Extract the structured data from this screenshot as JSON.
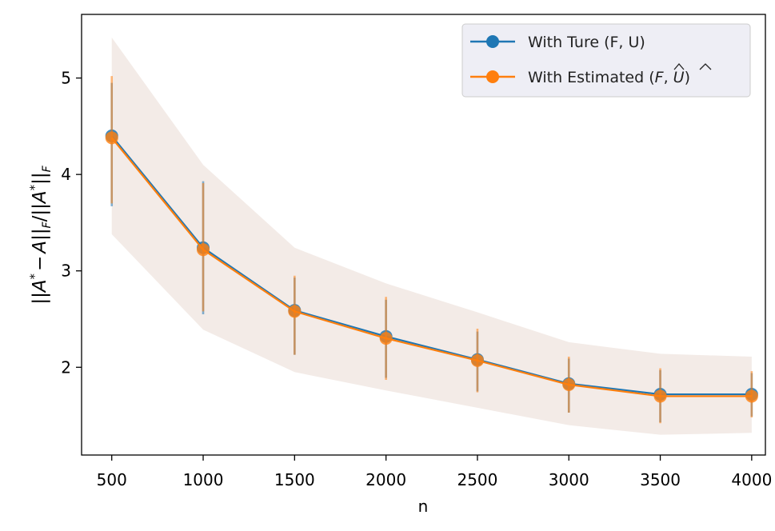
{
  "chart_data": {
    "type": "line",
    "xlabel": "n",
    "ylabel": "||A* − Â||F / ||A*||F",
    "ylabel_parts": {
      "open": "||",
      "a_star": "A",
      "star": "*",
      "minus": "−",
      "a_hat": "A",
      "hat_mark": "^",
      "close_f": "||",
      "sub_f": "F",
      "slash": "/",
      "open2": "||",
      "a_star2": "A",
      "star2": "*",
      "close_f2": "||",
      "sub_f2": "F"
    },
    "xlim": [
      335,
      4075
    ],
    "ylim": [
      1.09,
      5.66
    ],
    "x": [
      500,
      1000,
      1500,
      2000,
      2500,
      3000,
      3500,
      4000
    ],
    "xticks": [
      500,
      1000,
      1500,
      2000,
      2500,
      3000,
      3500,
      4000
    ],
    "xtick_labels": [
      "500",
      "1000",
      "1500",
      "2000",
      "2500",
      "3000",
      "3500",
      "4000"
    ],
    "yticks": [
      2,
      3,
      4,
      5
    ],
    "ytick_labels": [
      "2",
      "3",
      "4",
      "5"
    ],
    "series": [
      {
        "name": "With Ture (F, U)",
        "color": "#1f77b4",
        "values": [
          4.4,
          3.24,
          2.59,
          2.32,
          2.08,
          1.83,
          1.72,
          1.72
        ],
        "err_low": [
          3.67,
          2.55,
          2.13,
          1.89,
          1.75,
          1.53,
          1.43,
          1.49
        ],
        "err_high": [
          4.95,
          3.93,
          2.93,
          2.7,
          2.37,
          2.09,
          1.97,
          1.94
        ]
      },
      {
        "name": "With Estimated (F̂, Û)",
        "name_parts": {
          "prefix": "With Estimated (",
          "f": "F",
          "sep": ", ",
          "u": "U",
          "suffix": ")",
          "hat_mark": "^"
        },
        "color": "#ff7f0e",
        "values": [
          4.38,
          3.22,
          2.58,
          2.3,
          2.07,
          1.82,
          1.7,
          1.7
        ],
        "err_low": [
          3.7,
          2.58,
          2.13,
          1.87,
          1.74,
          1.53,
          1.42,
          1.48
        ],
        "err_high": [
          5.02,
          3.91,
          2.95,
          2.73,
          2.4,
          2.11,
          1.99,
          1.96
        ]
      }
    ],
    "band": {
      "color": "#e8d8cf",
      "opacity": 0.5,
      "lower": [
        3.38,
        2.39,
        1.95,
        1.76,
        1.58,
        1.4,
        1.3,
        1.32
      ],
      "upper": [
        5.42,
        4.1,
        3.24,
        2.87,
        2.57,
        2.26,
        2.14,
        2.11
      ]
    },
    "legend": "top-right"
  }
}
